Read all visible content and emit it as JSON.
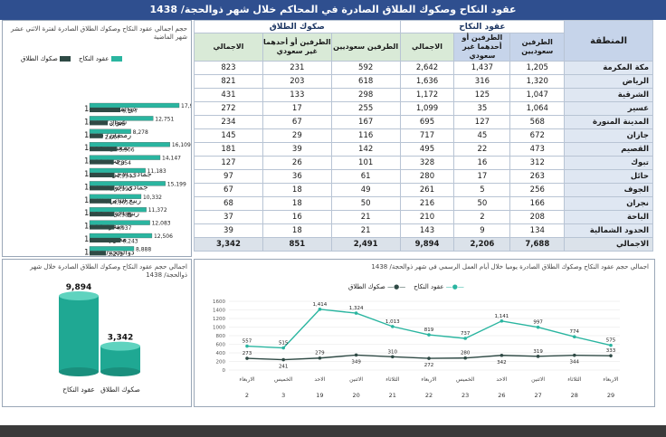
{
  "banner_title": "عقود النكاح وصكوك الطلاق الصادرة في المحاكم خلال شهر   ذوالحجة/ 1438",
  "table": {
    "group_marriage": "عقود النكاح",
    "group_divorce": "صكوك الطلاق",
    "col_region": "المنطقة",
    "col_both_saudi": "الطرفين سعوديين",
    "col_one_non_saudi": "الطرفين أو أحدهما غير سعودي",
    "col_total": "الاجمالي",
    "rows": [
      {
        "region": "مكة المكرمة",
        "m_saudi": "1,205",
        "m_non": "1,437",
        "m_total": "2,642",
        "d_saudi": "592",
        "d_non": "231",
        "d_total": "823"
      },
      {
        "region": "الرياض",
        "m_saudi": "1,320",
        "m_non": "316",
        "m_total": "1,636",
        "d_saudi": "618",
        "d_non": "203",
        "d_total": "821"
      },
      {
        "region": "الشرقية",
        "m_saudi": "1,047",
        "m_non": "125",
        "m_total": "1,172",
        "d_saudi": "298",
        "d_non": "133",
        "d_total": "431"
      },
      {
        "region": "عسير",
        "m_saudi": "1,064",
        "m_non": "35",
        "m_total": "1,099",
        "d_saudi": "255",
        "d_non": "17",
        "d_total": "272"
      },
      {
        "region": "المدينة المنورة",
        "m_saudi": "568",
        "m_non": "127",
        "m_total": "695",
        "d_saudi": "167",
        "d_non": "67",
        "d_total": "234"
      },
      {
        "region": "جازان",
        "m_saudi": "672",
        "m_non": "45",
        "m_total": "717",
        "d_saudi": "116",
        "d_non": "29",
        "d_total": "145"
      },
      {
        "region": "القصيم",
        "m_saudi": "473",
        "m_non": "22",
        "m_total": "495",
        "d_saudi": "142",
        "d_non": "39",
        "d_total": "181"
      },
      {
        "region": "تبوك",
        "m_saudi": "312",
        "m_non": "16",
        "m_total": "328",
        "d_saudi": "101",
        "d_non": "26",
        "d_total": "127"
      },
      {
        "region": "حائل",
        "m_saudi": "263",
        "m_non": "17",
        "m_total": "280",
        "d_saudi": "61",
        "d_non": "36",
        "d_total": "97"
      },
      {
        "region": "الجوف",
        "m_saudi": "256",
        "m_non": "5",
        "m_total": "261",
        "d_saudi": "49",
        "d_non": "18",
        "d_total": "67"
      },
      {
        "region": "نجران",
        "m_saudi": "166",
        "m_non": "50",
        "m_total": "216",
        "d_saudi": "50",
        "d_non": "18",
        "d_total": "68"
      },
      {
        "region": "الباحة",
        "m_saudi": "208",
        "m_non": "2",
        "m_total": "210",
        "d_saudi": "21",
        "d_non": "16",
        "d_total": "37"
      },
      {
        "region": "الحدود الشمالية",
        "m_saudi": "134",
        "m_non": "9",
        "m_total": "143",
        "d_saudi": "21",
        "d_non": "18",
        "d_total": "39"
      }
    ],
    "total": {
      "region": "الاجمالي",
      "m_saudi": "7,688",
      "m_non": "2,206",
      "m_total": "9,894",
      "d_saudi": "2,491",
      "d_non": "851",
      "d_total": "3,342"
    }
  },
  "colors": {
    "marriage": "#2ab5a0",
    "divorce": "#2f4a45",
    "banner": "#2f4f8f"
  },
  "chart_data": [
    {
      "type": "bar",
      "title": "حجم اجمالي عقود النكاح وصكوك الطلاق الصادرة لفترة الاثني عشر شهر الماضية",
      "categories": [
        "ذوالقعدة/ 1438",
        "شوال/ 1438",
        "رمضان/ 1438",
        "شعبان/ 1438",
        "رجب/ 1438",
        "جمادى الأخرة/ 1438",
        "جمادى الأول/ 1438",
        "ربيع الثاني/ 1438",
        "ربيع الأول/ 1438",
        "صفر/ 1438",
        "محرم/ 1438",
        "ذوالحجة/ 1437"
      ],
      "series": [
        {
          "name": "عقود النكاح",
          "values": [
            17962,
            12751,
            8278,
            16109,
            14147,
            11183,
            15199,
            10332,
            11372,
            12083,
            12506,
            8888
          ]
        },
        {
          "name": "صكوك الطلاق",
          "values": [
            6177,
            3645,
            2667,
            5506,
            4854,
            4994,
            4990,
            4365,
            4984,
            4937,
            6243,
            3272
          ]
        }
      ],
      "legend": "top"
    },
    {
      "type": "bar",
      "title": "اجمالي حجم عقود النكاح وصكوك الطلاق الصادرة خلال شهر   ذوالحجة/ 1438",
      "categories": [
        "عقود النكاح",
        "صكوك الطلاق"
      ],
      "values": [
        9894,
        3342
      ]
    },
    {
      "type": "line",
      "title": "اجمالي حجم عقود النكاح وصكوك الطلاق الصادرة يوميا خلال  أيام العمل الرسمي في شهر   ذوالحجة/ 1438",
      "x": [
        "2",
        "3",
        "19",
        "20",
        "21",
        "22",
        "23",
        "26",
        "27",
        "28",
        "29"
      ],
      "x_days": [
        "الاربعاء",
        "الخميس",
        "الاحد",
        "الاثنين",
        "الثلاثاء",
        "الاربعاء",
        "الخميس",
        "الاحد",
        "الاثنين",
        "الثلاثاء",
        "الاربعاء"
      ],
      "ylim": [
        0,
        1600
      ],
      "yticks": [
        "0",
        "200",
        "400",
        "600",
        "800",
        "1000",
        "1200",
        "1400",
        "1600"
      ],
      "series": [
        {
          "name": "عقود النكاح",
          "values": [
            557,
            515,
            1414,
            1324,
            1013,
            819,
            737,
            1141,
            997,
            774,
            575
          ]
        },
        {
          "name": "صكوك الطلاق",
          "values": [
            273,
            241,
            279,
            349,
            310,
            272,
            280,
            342,
            319,
            344,
            333
          ]
        }
      ],
      "legend": "top"
    }
  ]
}
